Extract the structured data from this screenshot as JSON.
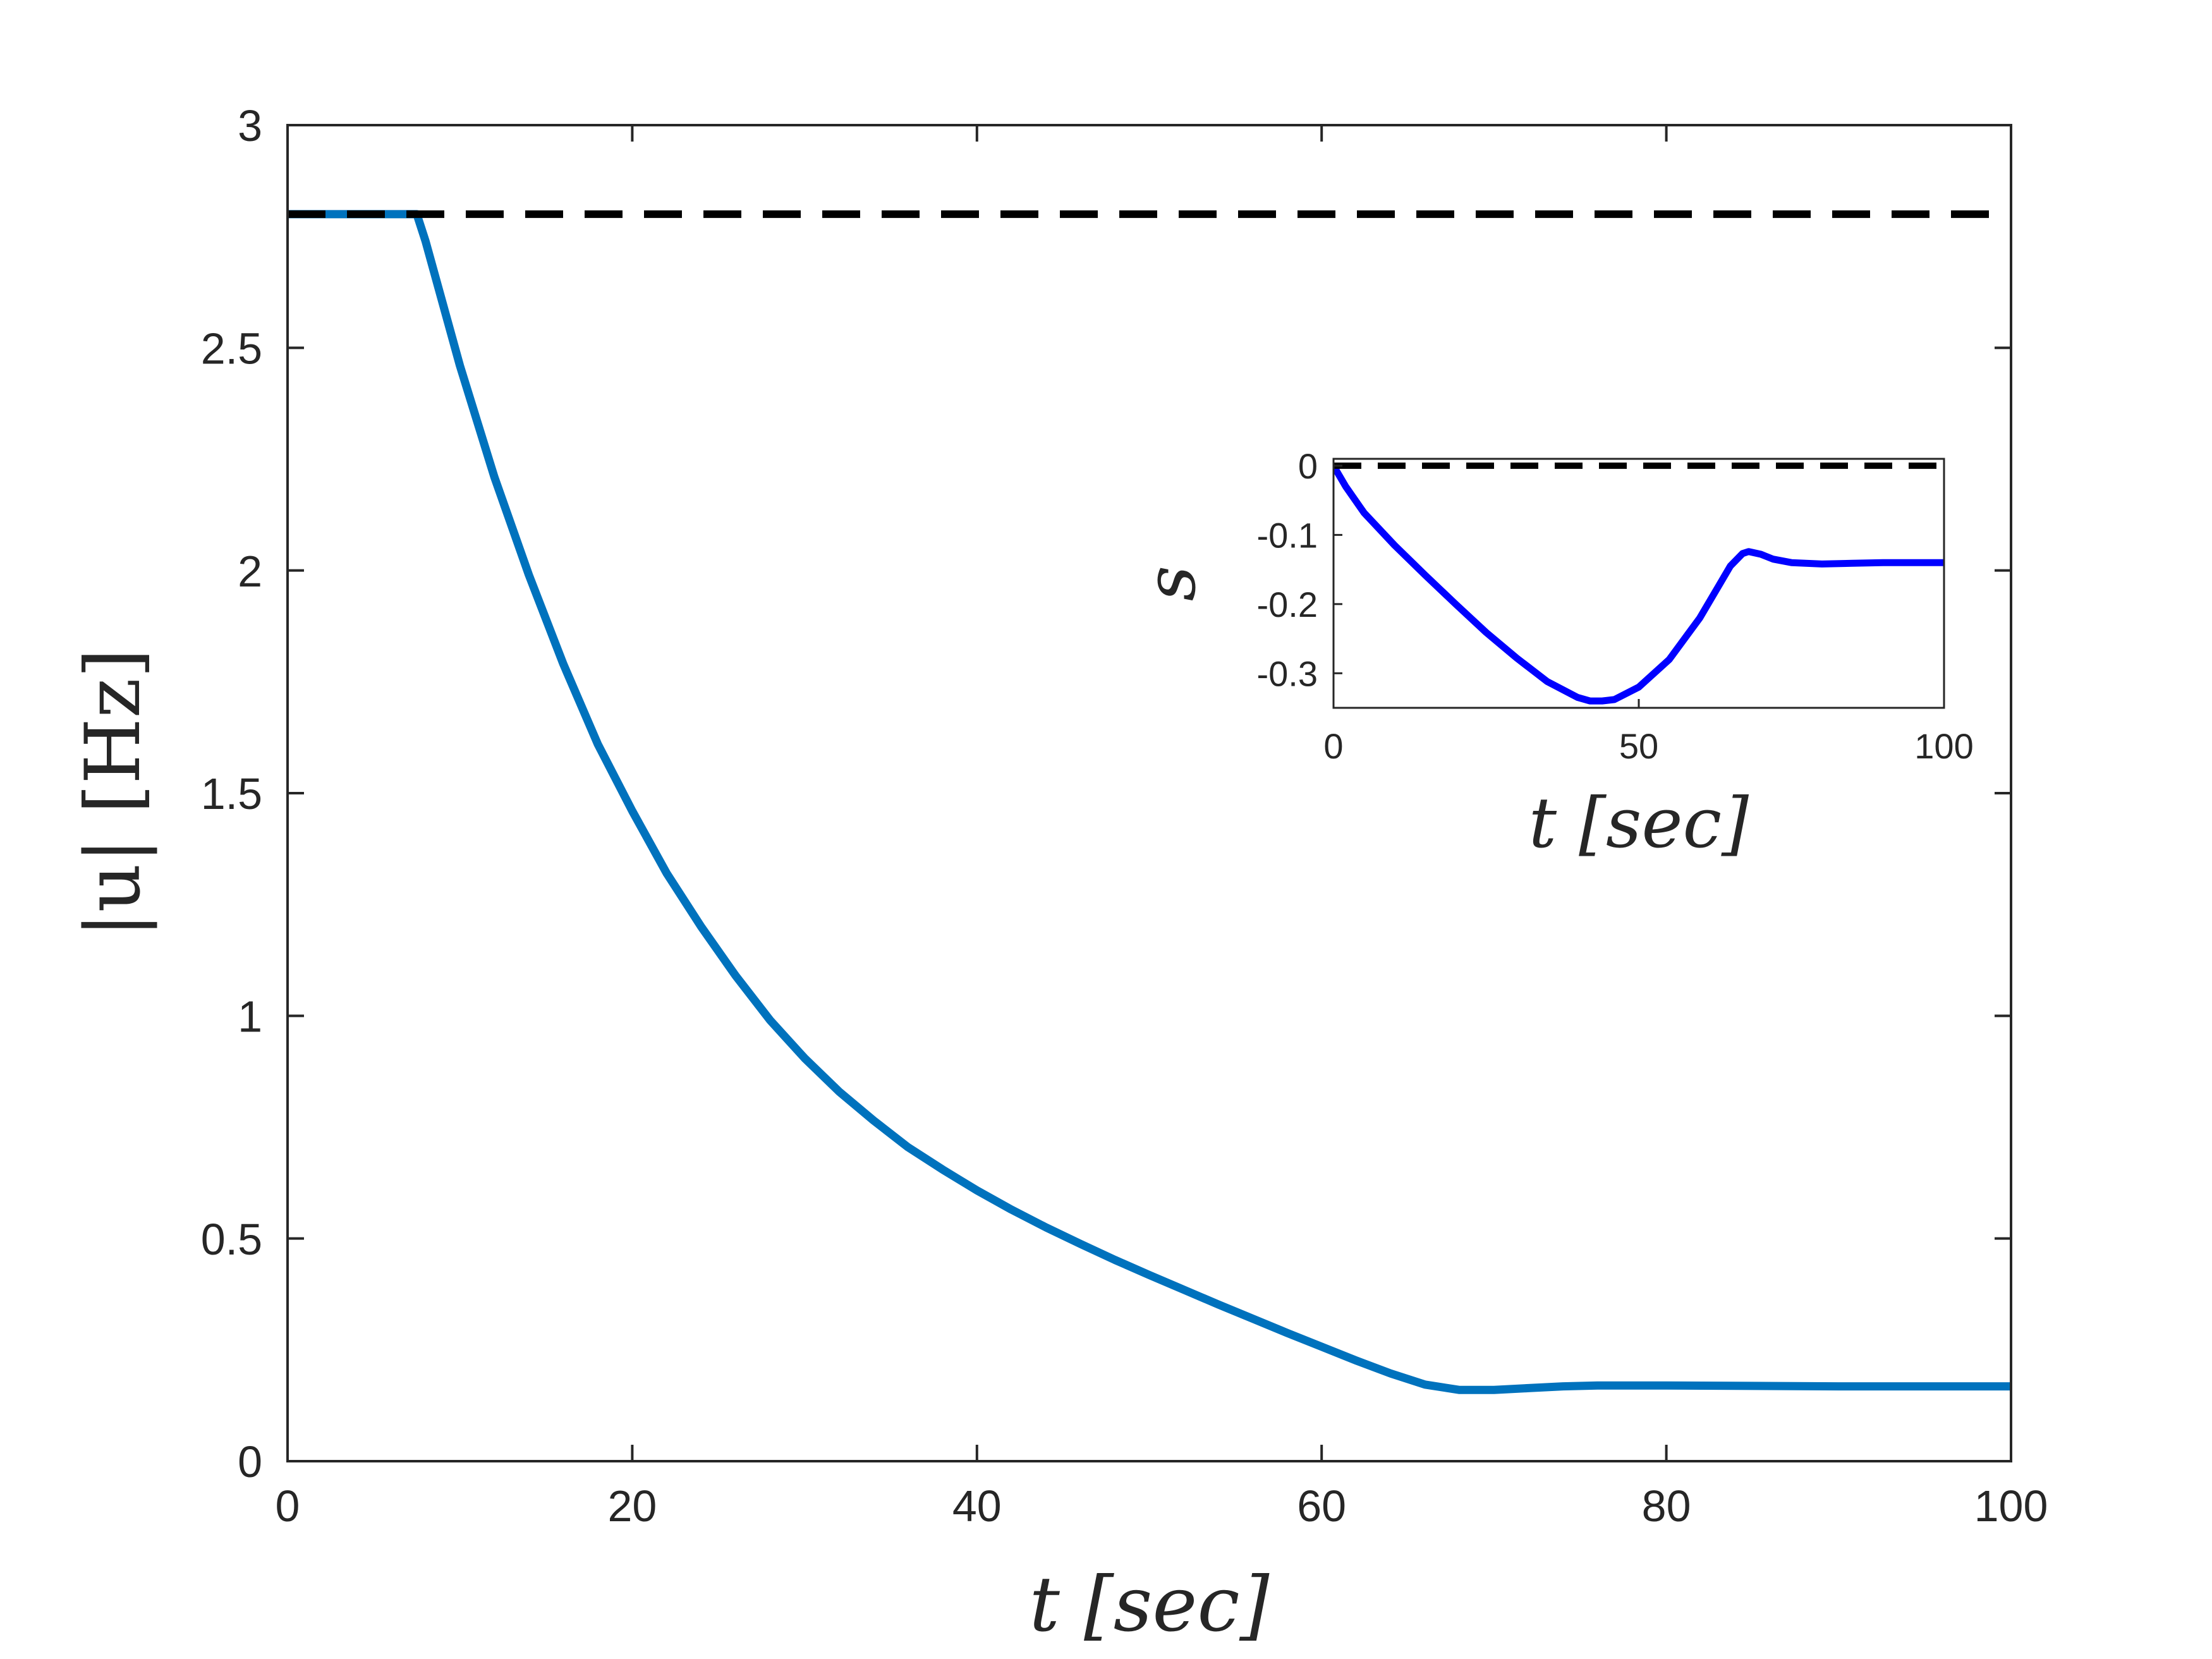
{
  "chart_data": [
    {
      "type": "line",
      "xlabel": "t [sec]",
      "ylabel": "|u| [Hz]",
      "xlim": [
        0,
        100
      ],
      "ylim": [
        0,
        3
      ],
      "xticks": [
        0,
        20,
        40,
        60,
        80,
        100
      ],
      "yticks": [
        0,
        0.5,
        1,
        1.5,
        2,
        2.5,
        3
      ],
      "xtick_labels": [
        "0",
        "20",
        "40",
        "60",
        "80",
        "100"
      ],
      "ytick_labels": [
        "0",
        "0.5",
        "1",
        "1.5",
        "2",
        "2.5",
        "3"
      ],
      "grid": false,
      "series": [
        {
          "color": "#0072BD",
          "style": "solid",
          "x": [
            0,
            2,
            4,
            6,
            7.5,
            8,
            10,
            12,
            14,
            16,
            18,
            20,
            22,
            24,
            26,
            28,
            30,
            32,
            34,
            36,
            38,
            40,
            42,
            44,
            46,
            48,
            50,
            52,
            54,
            56,
            58,
            60,
            62,
            64,
            66,
            68,
            70,
            72,
            74,
            76,
            78,
            80,
            85,
            90,
            95,
            100
          ],
          "y": [
            2.8,
            2.8,
            2.8,
            2.8,
            2.8,
            2.74,
            2.46,
            2.21,
            1.99,
            1.79,
            1.61,
            1.46,
            1.32,
            1.2,
            1.09,
            0.99,
            0.905,
            0.83,
            0.765,
            0.705,
            0.655,
            0.608,
            0.565,
            0.525,
            0.488,
            0.452,
            0.418,
            0.385,
            0.352,
            0.32,
            0.288,
            0.257,
            0.226,
            0.197,
            0.172,
            0.16,
            0.16,
            0.164,
            0.168,
            0.17,
            0.17,
            0.17,
            0.169,
            0.168,
            0.168,
            0.168
          ]
        },
        {
          "color": "#000000",
          "style": "dashed",
          "x": [
            0,
            100
          ],
          "y": [
            2.8,
            2.8
          ]
        }
      ]
    },
    {
      "type": "line",
      "xlabel": "t [sec]",
      "ylabel": "s",
      "xlim": [
        0,
        100
      ],
      "ylim": [
        -0.35,
        0.01
      ],
      "xticks": [
        0,
        50,
        100
      ],
      "yticks": [
        0,
        -0.1,
        -0.2,
        -0.3
      ],
      "xtick_labels": [
        "0",
        "50",
        "100"
      ],
      "ytick_labels": [
        "0",
        "-0.1",
        "-0.2",
        "-0.3"
      ],
      "grid": false,
      "series": [
        {
          "color": "#0000FF",
          "style": "solid",
          "x": [
            0,
            2,
            5,
            10,
            15,
            20,
            25,
            30,
            35,
            40,
            42,
            44,
            46,
            50,
            55,
            60,
            63,
            65,
            67,
            68,
            70,
            72,
            75,
            80,
            85,
            90,
            95,
            100
          ],
          "y": [
            0,
            -0.03,
            -0.068,
            -0.115,
            -0.158,
            -0.2,
            -0.241,
            -0.278,
            -0.312,
            -0.335,
            -0.34,
            -0.34,
            -0.338,
            -0.32,
            -0.28,
            -0.22,
            -0.175,
            -0.145,
            -0.127,
            -0.124,
            -0.128,
            -0.135,
            -0.14,
            -0.142,
            -0.141,
            -0.14,
            -0.14,
            -0.14
          ]
        },
        {
          "color": "#000000",
          "style": "dashed",
          "x": [
            0,
            100
          ],
          "y": [
            0,
            0
          ]
        }
      ]
    }
  ]
}
